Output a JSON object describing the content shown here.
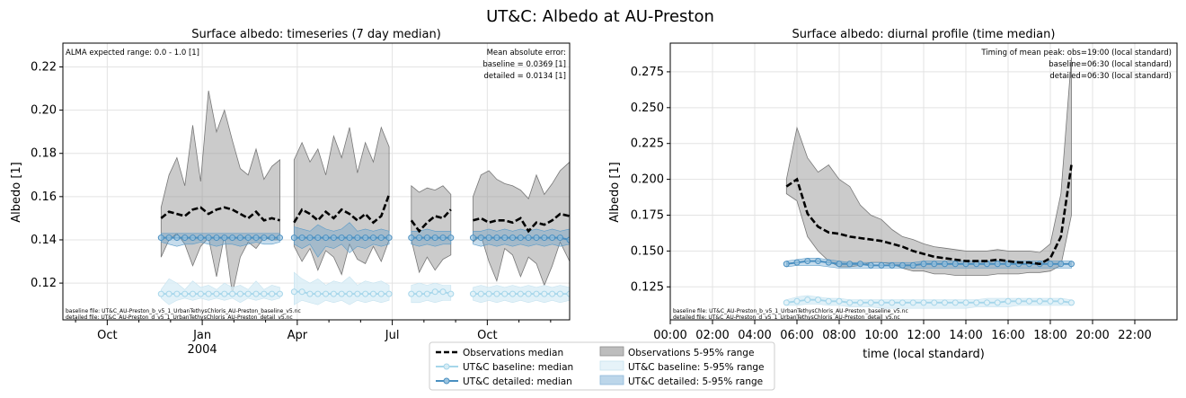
{
  "figure": {
    "suptitle": "UT&C: Albedo at AU-Preston",
    "colors": {
      "obs": "#000000",
      "obs_band": "#a6a6a6",
      "baseline": "#a6d6ea",
      "baseline_band": "#d9eef6",
      "detailed": "#4a8fc0",
      "detailed_band": "#9cc4df",
      "grid": "#e3e3e3"
    }
  },
  "legend": {
    "items": [
      {
        "key": "obs_median",
        "label": "Observations median"
      },
      {
        "key": "obs_band",
        "label": "Observations 5-95% range"
      },
      {
        "key": "base_median",
        "label": "UT&C baseline: median"
      },
      {
        "key": "base_band",
        "label": "UT&C baseline: 5-95% range"
      },
      {
        "key": "det_median",
        "label": "UT&C detailed: median"
      },
      {
        "key": "det_band",
        "label": "UT&C detailed: 5-95% range"
      }
    ]
  },
  "chart_data": [
    {
      "type": "line",
      "title": "Surface albedo: timeseries (7 day median)",
      "xlabel": "",
      "ylabel": "Albedo [1]",
      "x_unit": "months since 2003-07-01",
      "xlim": [
        1.6,
        17.6
      ],
      "ylim": [
        0.103,
        0.231
      ],
      "yticks": [
        0.12,
        0.14,
        0.16,
        0.18,
        0.2,
        0.22
      ],
      "xticks": [
        {
          "x": 3,
          "label": "Oct"
        },
        {
          "x": 6,
          "label": "Jan",
          "sublabel": "2004"
        },
        {
          "x": 9,
          "label": "Apr"
        },
        {
          "x": 12,
          "label": "Jul"
        },
        {
          "x": 15,
          "label": "Oct"
        }
      ],
      "minor_xticks": [
        2,
        4,
        5,
        7,
        8,
        10,
        11,
        13,
        14,
        16,
        17
      ],
      "grid": true,
      "note_left": "ALMA expected range: 0.0 - 1.0 [1]",
      "note_right": [
        "Mean absolute error:",
        "baseline = 0.0369 [1]",
        "detailed = 0.0134 [1]"
      ],
      "file_notes": [
        "baseline file: UT&C_AU-Preston_b_v5_1_UrbanTethysChloris_AU-Preston_baseline_v5.nc",
        "detailed file: UT&C_AU-Preston_d_v5_1_UrbanTethysChloris_AU-Preston_detail_v5.nc"
      ],
      "segments": [
        {
          "x": [
            4.7,
            4.95,
            5.2,
            5.45,
            5.7,
            5.95,
            6.2,
            6.45,
            6.7,
            6.95,
            7.2,
            7.45,
            7.7,
            7.95,
            8.2,
            8.45
          ],
          "obs_median": [
            0.15,
            0.153,
            0.152,
            0.151,
            0.154,
            0.155,
            0.152,
            0.154,
            0.155,
            0.154,
            0.152,
            0.15,
            0.153,
            0.149,
            0.15,
            0.149
          ],
          "obs_p95": [
            0.155,
            0.17,
            0.178,
            0.165,
            0.193,
            0.167,
            0.209,
            0.19,
            0.2,
            0.186,
            0.173,
            0.17,
            0.182,
            0.168,
            0.174,
            0.177
          ],
          "obs_p05": [
            0.132,
            0.14,
            0.143,
            0.138,
            0.128,
            0.137,
            0.141,
            0.123,
            0.142,
            0.115,
            0.132,
            0.139,
            0.136,
            0.141,
            0.14,
            0.14
          ],
          "det_median": [
            0.141,
            0.141,
            0.141,
            0.141,
            0.141,
            0.141,
            0.141,
            0.141,
            0.141,
            0.141,
            0.141,
            0.141,
            0.141,
            0.141,
            0.141,
            0.141
          ],
          "det_p95": [
            0.143,
            0.143,
            0.143,
            0.143,
            0.143,
            0.143,
            0.143,
            0.143,
            0.143,
            0.143,
            0.143,
            0.143,
            0.143,
            0.143,
            0.143,
            0.143
          ],
          "det_p05": [
            0.139,
            0.138,
            0.137,
            0.138,
            0.138,
            0.139,
            0.138,
            0.137,
            0.138,
            0.138,
            0.137,
            0.138,
            0.139,
            0.138,
            0.138,
            0.139
          ],
          "base_median": [
            0.115,
            0.115,
            0.115,
            0.115,
            0.115,
            0.115,
            0.115,
            0.115,
            0.115,
            0.115,
            0.115,
            0.115,
            0.115,
            0.115,
            0.115,
            0.115
          ],
          "base_p95": [
            0.117,
            0.122,
            0.12,
            0.117,
            0.121,
            0.118,
            0.119,
            0.117,
            0.12,
            0.118,
            0.119,
            0.117,
            0.121,
            0.117,
            0.119,
            0.118
          ],
          "base_p05": [
            0.113,
            0.11,
            0.112,
            0.113,
            0.112,
            0.113,
            0.112,
            0.113,
            0.112,
            0.113,
            0.111,
            0.113,
            0.112,
            0.113,
            0.112,
            0.113
          ]
        },
        {
          "x": [
            8.9,
            9.15,
            9.4,
            9.65,
            9.9,
            10.15,
            10.4,
            10.65,
            10.9,
            11.15,
            11.4,
            11.65,
            11.9
          ],
          "obs_median": [
            0.148,
            0.154,
            0.152,
            0.149,
            0.153,
            0.15,
            0.154,
            0.152,
            0.149,
            0.152,
            0.148,
            0.151,
            0.161
          ],
          "obs_p95": [
            0.177,
            0.185,
            0.176,
            0.182,
            0.17,
            0.188,
            0.178,
            0.192,
            0.171,
            0.185,
            0.176,
            0.192,
            0.183
          ],
          "obs_p05": [
            0.137,
            0.13,
            0.136,
            0.126,
            0.135,
            0.132,
            0.124,
            0.138,
            0.131,
            0.129,
            0.137,
            0.13,
            0.14
          ],
          "det_median": [
            0.141,
            0.141,
            0.141,
            0.141,
            0.141,
            0.141,
            0.141,
            0.141,
            0.141,
            0.141,
            0.141,
            0.141,
            0.141
          ],
          "det_p95": [
            0.146,
            0.145,
            0.144,
            0.147,
            0.145,
            0.144,
            0.145,
            0.148,
            0.144,
            0.145,
            0.144,
            0.145,
            0.144
          ],
          "det_p05": [
            0.138,
            0.136,
            0.138,
            0.132,
            0.137,
            0.136,
            0.138,
            0.134,
            0.137,
            0.136,
            0.138,
            0.137,
            0.138
          ],
          "base_median": [
            0.116,
            0.116,
            0.115,
            0.115,
            0.115,
            0.115,
            0.115,
            0.115,
            0.115,
            0.115,
            0.115,
            0.115,
            0.115
          ],
          "base_p95": [
            0.125,
            0.122,
            0.12,
            0.122,
            0.119,
            0.121,
            0.12,
            0.123,
            0.119,
            0.121,
            0.12,
            0.121,
            0.119
          ],
          "base_p05": [
            0.11,
            0.112,
            0.111,
            0.11,
            0.112,
            0.111,
            0.112,
            0.11,
            0.112,
            0.111,
            0.112,
            0.111,
            0.112
          ]
        },
        {
          "x": [
            12.6,
            12.85,
            13.1,
            13.35,
            13.6,
            13.85
          ],
          "obs_median": [
            0.149,
            0.144,
            0.148,
            0.151,
            0.15,
            0.154
          ],
          "obs_p95": [
            0.165,
            0.162,
            0.164,
            0.163,
            0.165,
            0.161
          ],
          "obs_p05": [
            0.14,
            0.125,
            0.132,
            0.126,
            0.131,
            0.133
          ],
          "det_median": [
            0.141,
            0.141,
            0.141,
            0.141,
            0.141,
            0.141
          ],
          "det_p95": [
            0.144,
            0.144,
            0.145,
            0.144,
            0.144,
            0.144
          ],
          "det_p05": [
            0.138,
            0.137,
            0.138,
            0.137,
            0.138,
            0.138
          ],
          "base_median": [
            0.115,
            0.115,
            0.115,
            0.116,
            0.116,
            0.115
          ],
          "base_p95": [
            0.119,
            0.12,
            0.119,
            0.12,
            0.119,
            0.119
          ],
          "base_p05": [
            0.111,
            0.111,
            0.112,
            0.111,
            0.112,
            0.112
          ]
        },
        {
          "x": [
            14.55,
            14.8,
            15.05,
            15.3,
            15.55,
            15.8,
            16.05,
            16.3,
            16.55,
            16.8,
            17.05,
            17.3,
            17.6
          ],
          "obs_median": [
            0.149,
            0.15,
            0.148,
            0.149,
            0.149,
            0.148,
            0.15,
            0.144,
            0.148,
            0.147,
            0.149,
            0.152,
            0.151
          ],
          "obs_p95": [
            0.16,
            0.17,
            0.172,
            0.168,
            0.166,
            0.165,
            0.163,
            0.159,
            0.17,
            0.161,
            0.166,
            0.172,
            0.176
          ],
          "obs_p05": [
            0.139,
            0.142,
            0.13,
            0.121,
            0.136,
            0.133,
            0.123,
            0.132,
            0.129,
            0.119,
            0.128,
            0.139,
            0.13
          ],
          "det_median": [
            0.141,
            0.141,
            0.141,
            0.141,
            0.141,
            0.141,
            0.141,
            0.141,
            0.141,
            0.141,
            0.141,
            0.141,
            0.14
          ],
          "det_p95": [
            0.144,
            0.144,
            0.145,
            0.144,
            0.145,
            0.144,
            0.145,
            0.144,
            0.145,
            0.144,
            0.145,
            0.144,
            0.145
          ],
          "det_p05": [
            0.138,
            0.137,
            0.138,
            0.137,
            0.138,
            0.137,
            0.138,
            0.137,
            0.138,
            0.137,
            0.138,
            0.137,
            0.138
          ],
          "base_median": [
            0.115,
            0.115,
            0.115,
            0.115,
            0.115,
            0.115,
            0.115,
            0.115,
            0.115,
            0.115,
            0.115,
            0.115,
            0.115
          ],
          "base_p95": [
            0.118,
            0.119,
            0.118,
            0.119,
            0.118,
            0.119,
            0.118,
            0.119,
            0.118,
            0.119,
            0.118,
            0.119,
            0.118
          ],
          "base_p05": [
            0.112,
            0.111,
            0.112,
            0.111,
            0.112,
            0.111,
            0.112,
            0.111,
            0.112,
            0.111,
            0.112,
            0.111,
            0.112
          ]
        }
      ]
    },
    {
      "type": "line",
      "title": "Surface albedo: diurnal profile (time median)",
      "xlabel": "time (local standard)",
      "ylabel": "Albedo [1]",
      "xlim": [
        0,
        24
      ],
      "ylim": [
        0.102,
        0.295
      ],
      "yticks": [
        0.125,
        0.15,
        0.175,
        0.2,
        0.225,
        0.25,
        0.275
      ],
      "ytick_labels": [
        "0.125",
        "0.150",
        "0.175",
        "0.200",
        "0.225",
        "0.250",
        "0.275"
      ],
      "xticks": [
        0,
        2,
        4,
        6,
        8,
        10,
        12,
        14,
        16,
        18,
        20,
        22
      ],
      "xtick_labels": [
        "00:00",
        "02:00",
        "04:00",
        "06:00",
        "08:00",
        "10:00",
        "12:00",
        "14:00",
        "16:00",
        "18:00",
        "20:00",
        "22:00"
      ],
      "grid": true,
      "note_right": [
        "Timing of mean peak: obs=19:00 (local standard)",
        "baseline=06:30 (local standard)",
        "detailed=06:30 (local standard)"
      ],
      "file_notes": [
        "baseline file: UT&C_AU-Preston_b_v5_1_UrbanTethysChloris_AU-Preston_baseline_v5.nc",
        "detailed file: UT&C_AU-Preston_d_v5_1_UrbanTethysChloris_AU-Preston_detail_v5.nc"
      ],
      "series": {
        "x": [
          5.5,
          6.0,
          6.5,
          7.0,
          7.5,
          8.0,
          8.5,
          9.0,
          9.5,
          10.0,
          10.5,
          11.0,
          11.5,
          12.0,
          12.5,
          13.0,
          13.5,
          14.0,
          14.5,
          15.0,
          15.5,
          16.0,
          16.5,
          17.0,
          17.5,
          18.0,
          18.5,
          19.0
        ],
        "obs_median": [
          0.195,
          0.2,
          0.176,
          0.167,
          0.163,
          0.162,
          0.16,
          0.159,
          0.158,
          0.157,
          0.155,
          0.153,
          0.15,
          0.148,
          0.146,
          0.145,
          0.144,
          0.143,
          0.143,
          0.143,
          0.144,
          0.143,
          0.142,
          0.142,
          0.141,
          0.145,
          0.16,
          0.21
        ],
        "obs_p95": [
          0.2,
          0.236,
          0.215,
          0.205,
          0.21,
          0.2,
          0.195,
          0.182,
          0.175,
          0.172,
          0.165,
          0.16,
          0.158,
          0.155,
          0.153,
          0.152,
          0.151,
          0.15,
          0.15,
          0.15,
          0.151,
          0.15,
          0.15,
          0.15,
          0.149,
          0.155,
          0.19,
          0.285
        ],
        "obs_p05": [
          0.19,
          0.185,
          0.16,
          0.15,
          0.143,
          0.139,
          0.139,
          0.14,
          0.142,
          0.142,
          0.141,
          0.138,
          0.136,
          0.136,
          0.134,
          0.134,
          0.133,
          0.133,
          0.133,
          0.133,
          0.134,
          0.134,
          0.134,
          0.135,
          0.135,
          0.136,
          0.14,
          0.175
        ],
        "det_median": [
          0.141,
          0.142,
          0.143,
          0.143,
          0.142,
          0.141,
          0.141,
          0.141,
          0.14,
          0.14,
          0.14,
          0.14,
          0.14,
          0.141,
          0.141,
          0.141,
          0.141,
          0.141,
          0.141,
          0.141,
          0.141,
          0.141,
          0.141,
          0.141,
          0.141,
          0.141,
          0.141,
          0.141
        ],
        "det_p95": [
          0.143,
          0.144,
          0.145,
          0.145,
          0.144,
          0.143,
          0.142,
          0.142,
          0.142,
          0.142,
          0.142,
          0.142,
          0.142,
          0.143,
          0.143,
          0.143,
          0.143,
          0.143,
          0.143,
          0.143,
          0.143,
          0.143,
          0.143,
          0.143,
          0.143,
          0.143,
          0.143,
          0.143
        ],
        "det_p05": [
          0.139,
          0.14,
          0.14,
          0.14,
          0.139,
          0.138,
          0.138,
          0.138,
          0.138,
          0.138,
          0.138,
          0.138,
          0.138,
          0.138,
          0.138,
          0.138,
          0.138,
          0.138,
          0.138,
          0.138,
          0.138,
          0.138,
          0.138,
          0.138,
          0.138,
          0.138,
          0.138,
          0.138
        ],
        "base_median": [
          0.114,
          0.115,
          0.116,
          0.116,
          0.115,
          0.115,
          0.114,
          0.114,
          0.114,
          0.114,
          0.114,
          0.114,
          0.114,
          0.114,
          0.114,
          0.114,
          0.114,
          0.114,
          0.114,
          0.114,
          0.114,
          0.115,
          0.115,
          0.115,
          0.115,
          0.115,
          0.115,
          0.114
        ],
        "base_p95": [
          0.116,
          0.118,
          0.119,
          0.118,
          0.117,
          0.117,
          0.116,
          0.116,
          0.116,
          0.116,
          0.116,
          0.116,
          0.116,
          0.116,
          0.116,
          0.116,
          0.116,
          0.116,
          0.116,
          0.117,
          0.117,
          0.117,
          0.117,
          0.117,
          0.117,
          0.117,
          0.117,
          0.116
        ],
        "base_p05": [
          0.112,
          0.112,
          0.113,
          0.113,
          0.112,
          0.112,
          0.111,
          0.111,
          0.111,
          0.11,
          0.11,
          0.11,
          0.11,
          0.11,
          0.11,
          0.11,
          0.11,
          0.11,
          0.111,
          0.111,
          0.111,
          0.111,
          0.112,
          0.112,
          0.112,
          0.112,
          0.112,
          0.112
        ]
      }
    }
  ]
}
